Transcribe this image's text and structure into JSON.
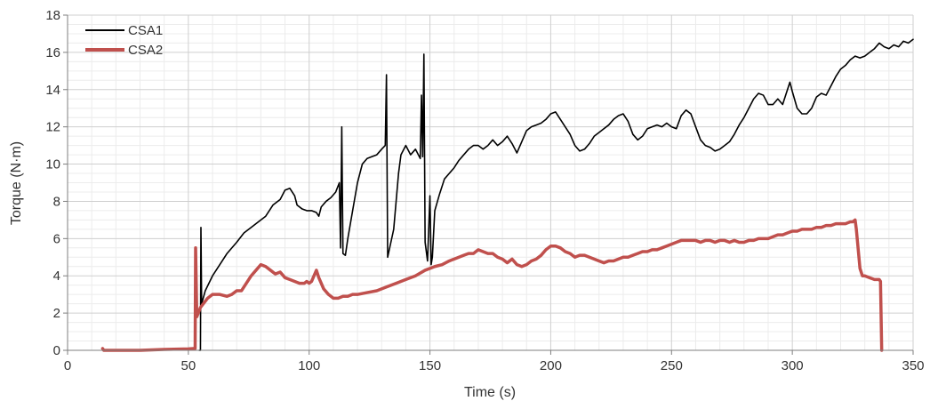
{
  "chart_data": {
    "type": "line",
    "xlabel": "Time (s)",
    "ylabel": "Torque (N·m)",
    "xlim": [
      0,
      350
    ],
    "ylim": [
      0,
      18
    ],
    "x_ticks": [
      0,
      50,
      100,
      150,
      200,
      250,
      300,
      350
    ],
    "y_ticks": [
      0,
      2,
      4,
      6,
      8,
      10,
      12,
      14,
      16,
      18
    ],
    "grid": {
      "major": true,
      "minor": true
    },
    "legend": "top-left",
    "series": [
      {
        "name": "CSA1",
        "color": "#000000",
        "points": [
          [
            54.5,
            0
          ],
          [
            55,
            0
          ],
          [
            55.2,
            6.6
          ],
          [
            55.5,
            2.5
          ],
          [
            57,
            3.2
          ],
          [
            60,
            4.0
          ],
          [
            63,
            4.6
          ],
          [
            66,
            5.2
          ],
          [
            70,
            5.8
          ],
          [
            73,
            6.3
          ],
          [
            76,
            6.6
          ],
          [
            80,
            7.0
          ],
          [
            82,
            7.2
          ],
          [
            85,
            7.8
          ],
          [
            88,
            8.1
          ],
          [
            90,
            8.6
          ],
          [
            92,
            8.7
          ],
          [
            94,
            8.3
          ],
          [
            95,
            7.8
          ],
          [
            97,
            7.6
          ],
          [
            99,
            7.5
          ],
          [
            101,
            7.5
          ],
          [
            103,
            7.4
          ],
          [
            104,
            7.2
          ],
          [
            105,
            7.7
          ],
          [
            107,
            8.0
          ],
          [
            109,
            8.2
          ],
          [
            111,
            8.5
          ],
          [
            112.5,
            9.0
          ],
          [
            113,
            5.5
          ],
          [
            113.5,
            12.0
          ],
          [
            114,
            5.2
          ],
          [
            115,
            5.1
          ],
          [
            116,
            6.0
          ],
          [
            118,
            7.5
          ],
          [
            120,
            9.0
          ],
          [
            122,
            10.0
          ],
          [
            124,
            10.3
          ],
          [
            126,
            10.4
          ],
          [
            128,
            10.5
          ],
          [
            130,
            10.8
          ],
          [
            131.5,
            11.0
          ],
          [
            132,
            14.8
          ],
          [
            132.5,
            5.0
          ],
          [
            133,
            5.3
          ],
          [
            135,
            6.5
          ],
          [
            136,
            8.0
          ],
          [
            137,
            9.5
          ],
          [
            138,
            10.5
          ],
          [
            140,
            11.0
          ],
          [
            142,
            10.5
          ],
          [
            144,
            10.8
          ],
          [
            146,
            10.3
          ],
          [
            146.5,
            13.7
          ],
          [
            147,
            10.4
          ],
          [
            147.5,
            15.9
          ],
          [
            148,
            5.8
          ],
          [
            149,
            4.8
          ],
          [
            150,
            8.3
          ],
          [
            150.5,
            4.6
          ],
          [
            151,
            5.0
          ],
          [
            152,
            7.5
          ],
          [
            154,
            8.4
          ],
          [
            156,
            9.2
          ],
          [
            158,
            9.5
          ],
          [
            160,
            9.8
          ],
          [
            162,
            10.2
          ],
          [
            164,
            10.5
          ],
          [
            166,
            10.8
          ],
          [
            168,
            11.0
          ],
          [
            170,
            11.0
          ],
          [
            172,
            10.8
          ],
          [
            174,
            11.0
          ],
          [
            176,
            11.3
          ],
          [
            178,
            11.0
          ],
          [
            180,
            11.2
          ],
          [
            182,
            11.5
          ],
          [
            184,
            11.1
          ],
          [
            186,
            10.6
          ],
          [
            188,
            11.2
          ],
          [
            190,
            11.8
          ],
          [
            192,
            12.0
          ],
          [
            194,
            12.1
          ],
          [
            196,
            12.2
          ],
          [
            198,
            12.4
          ],
          [
            200,
            12.7
          ],
          [
            202,
            12.8
          ],
          [
            204,
            12.4
          ],
          [
            206,
            12.0
          ],
          [
            208,
            11.6
          ],
          [
            210,
            11.0
          ],
          [
            212,
            10.7
          ],
          [
            214,
            10.8
          ],
          [
            216,
            11.1
          ],
          [
            218,
            11.5
          ],
          [
            220,
            11.7
          ],
          [
            222,
            11.9
          ],
          [
            224,
            12.1
          ],
          [
            226,
            12.4
          ],
          [
            228,
            12.6
          ],
          [
            230,
            12.7
          ],
          [
            232,
            12.3
          ],
          [
            234,
            11.6
          ],
          [
            236,
            11.3
          ],
          [
            238,
            11.5
          ],
          [
            240,
            11.9
          ],
          [
            242,
            12.0
          ],
          [
            244,
            12.1
          ],
          [
            246,
            12.0
          ],
          [
            248,
            12.2
          ],
          [
            250,
            12.0
          ],
          [
            252,
            11.9
          ],
          [
            254,
            12.6
          ],
          [
            256,
            12.9
          ],
          [
            258,
            12.7
          ],
          [
            260,
            12.0
          ],
          [
            262,
            11.3
          ],
          [
            264,
            11.0
          ],
          [
            266,
            10.9
          ],
          [
            268,
            10.7
          ],
          [
            270,
            10.8
          ],
          [
            272,
            11.0
          ],
          [
            274,
            11.2
          ],
          [
            276,
            11.6
          ],
          [
            278,
            12.1
          ],
          [
            280,
            12.5
          ],
          [
            282,
            13.0
          ],
          [
            284,
            13.5
          ],
          [
            286,
            13.8
          ],
          [
            288,
            13.7
          ],
          [
            290,
            13.2
          ],
          [
            292,
            13.2
          ],
          [
            294,
            13.5
          ],
          [
            296,
            13.2
          ],
          [
            298,
            14.0
          ],
          [
            299,
            14.4
          ],
          [
            300,
            13.9
          ],
          [
            302,
            13.0
          ],
          [
            304,
            12.7
          ],
          [
            306,
            12.7
          ],
          [
            308,
            13.0
          ],
          [
            310,
            13.6
          ],
          [
            312,
            13.8
          ],
          [
            314,
            13.7
          ],
          [
            316,
            14.2
          ],
          [
            318,
            14.7
          ],
          [
            320,
            15.1
          ],
          [
            322,
            15.3
          ],
          [
            324,
            15.6
          ],
          [
            326,
            15.8
          ],
          [
            328,
            15.7
          ],
          [
            330,
            15.8
          ],
          [
            332,
            16.0
          ],
          [
            334,
            16.2
          ],
          [
            336,
            16.5
          ],
          [
            338,
            16.3
          ],
          [
            340,
            16.2
          ],
          [
            342,
            16.4
          ],
          [
            344,
            16.3
          ],
          [
            346,
            16.6
          ],
          [
            348,
            16.5
          ],
          [
            350,
            16.7
          ]
        ]
      },
      {
        "name": "CSA2",
        "color": "#c0504d",
        "points": [
          [
            14.5,
            0.1
          ],
          [
            15,
            0
          ],
          [
            20,
            0
          ],
          [
            30,
            0
          ],
          [
            40,
            0.05
          ],
          [
            50,
            0.08
          ],
          [
            52.8,
            0.1
          ],
          [
            53,
            5.5
          ],
          [
            53.5,
            1.8
          ],
          [
            55,
            2.3
          ],
          [
            58,
            2.8
          ],
          [
            60,
            3.0
          ],
          [
            63,
            3.0
          ],
          [
            66,
            2.9
          ],
          [
            68,
            3.0
          ],
          [
            70,
            3.2
          ],
          [
            72,
            3.2
          ],
          [
            74,
            3.6
          ],
          [
            76,
            4.0
          ],
          [
            78,
            4.3
          ],
          [
            80,
            4.6
          ],
          [
            82,
            4.5
          ],
          [
            84,
            4.3
          ],
          [
            86,
            4.1
          ],
          [
            88,
            4.2
          ],
          [
            90,
            3.9
          ],
          [
            92,
            3.8
          ],
          [
            94,
            3.7
          ],
          [
            96,
            3.6
          ],
          [
            98,
            3.6
          ],
          [
            99,
            3.7
          ],
          [
            100,
            3.6
          ],
          [
            101,
            3.7
          ],
          [
            102,
            4.0
          ],
          [
            103,
            4.3
          ],
          [
            104,
            3.9
          ],
          [
            106,
            3.3
          ],
          [
            108,
            3.0
          ],
          [
            110,
            2.8
          ],
          [
            112,
            2.8
          ],
          [
            114,
            2.9
          ],
          [
            116,
            2.9
          ],
          [
            118,
            3.0
          ],
          [
            120,
            3.0
          ],
          [
            124,
            3.1
          ],
          [
            128,
            3.2
          ],
          [
            132,
            3.4
          ],
          [
            136,
            3.6
          ],
          [
            140,
            3.8
          ],
          [
            144,
            4.0
          ],
          [
            148,
            4.3
          ],
          [
            150,
            4.4
          ],
          [
            152,
            4.5
          ],
          [
            155,
            4.6
          ],
          [
            158,
            4.8
          ],
          [
            160,
            4.9
          ],
          [
            162,
            5.0
          ],
          [
            164,
            5.1
          ],
          [
            166,
            5.2
          ],
          [
            168,
            5.2
          ],
          [
            170,
            5.4
          ],
          [
            172,
            5.3
          ],
          [
            174,
            5.2
          ],
          [
            176,
            5.2
          ],
          [
            178,
            5.0
          ],
          [
            180,
            4.9
          ],
          [
            182,
            4.7
          ],
          [
            184,
            4.9
          ],
          [
            186,
            4.6
          ],
          [
            188,
            4.5
          ],
          [
            190,
            4.6
          ],
          [
            192,
            4.8
          ],
          [
            194,
            4.9
          ],
          [
            196,
            5.1
          ],
          [
            198,
            5.4
          ],
          [
            200,
            5.6
          ],
          [
            202,
            5.6
          ],
          [
            204,
            5.5
          ],
          [
            206,
            5.3
          ],
          [
            208,
            5.2
          ],
          [
            210,
            5.0
          ],
          [
            212,
            5.1
          ],
          [
            214,
            5.1
          ],
          [
            216,
            5.0
          ],
          [
            218,
            4.9
          ],
          [
            220,
            4.8
          ],
          [
            222,
            4.7
          ],
          [
            224,
            4.8
          ],
          [
            226,
            4.8
          ],
          [
            228,
            4.9
          ],
          [
            230,
            5.0
          ],
          [
            232,
            5.0
          ],
          [
            234,
            5.1
          ],
          [
            236,
            5.2
          ],
          [
            238,
            5.3
          ],
          [
            240,
            5.3
          ],
          [
            242,
            5.4
          ],
          [
            244,
            5.4
          ],
          [
            246,
            5.5
          ],
          [
            248,
            5.6
          ],
          [
            250,
            5.7
          ],
          [
            252,
            5.8
          ],
          [
            254,
            5.9
          ],
          [
            256,
            5.9
          ],
          [
            258,
            5.9
          ],
          [
            260,
            5.9
          ],
          [
            262,
            5.8
          ],
          [
            264,
            5.9
          ],
          [
            266,
            5.9
          ],
          [
            268,
            5.8
          ],
          [
            270,
            5.9
          ],
          [
            272,
            5.9
          ],
          [
            274,
            5.8
          ],
          [
            276,
            5.9
          ],
          [
            278,
            5.8
          ],
          [
            280,
            5.8
          ],
          [
            282,
            5.9
          ],
          [
            284,
            5.9
          ],
          [
            286,
            6.0
          ],
          [
            288,
            6.0
          ],
          [
            290,
            6.0
          ],
          [
            292,
            6.1
          ],
          [
            294,
            6.2
          ],
          [
            296,
            6.2
          ],
          [
            298,
            6.3
          ],
          [
            300,
            6.4
          ],
          [
            302,
            6.4
          ],
          [
            304,
            6.5
          ],
          [
            306,
            6.5
          ],
          [
            308,
            6.5
          ],
          [
            310,
            6.6
          ],
          [
            312,
            6.6
          ],
          [
            314,
            6.7
          ],
          [
            316,
            6.7
          ],
          [
            318,
            6.8
          ],
          [
            320,
            6.8
          ],
          [
            322,
            6.8
          ],
          [
            324,
            6.9
          ],
          [
            325,
            6.9
          ],
          [
            326,
            7.0
          ],
          [
            326.5,
            6.5
          ],
          [
            327,
            5.8
          ],
          [
            328,
            4.4
          ],
          [
            329,
            4.0
          ],
          [
            330,
            4.0
          ],
          [
            332,
            3.9
          ],
          [
            334,
            3.8
          ],
          [
            336,
            3.8
          ],
          [
            336.5,
            3.7
          ],
          [
            337,
            0
          ]
        ]
      }
    ]
  }
}
